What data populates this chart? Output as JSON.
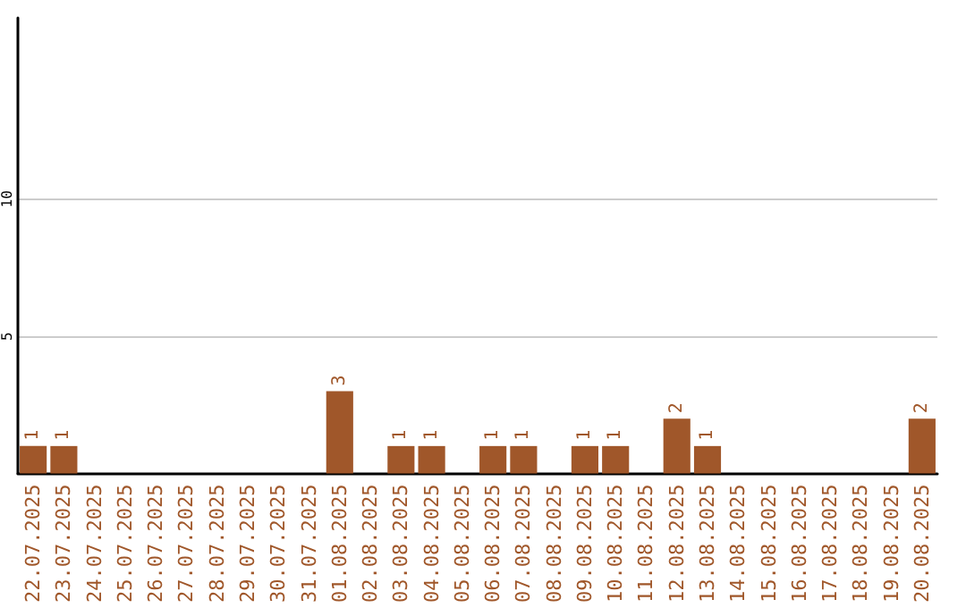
{
  "chart_data": {
    "type": "bar",
    "categories": [
      "22.07.2025",
      "23.07.2025",
      "24.07.2025",
      "25.07.2025",
      "26.07.2025",
      "27.07.2025",
      "28.07.2025",
      "29.07.2025",
      "30.07.2025",
      "31.07.2025",
      "01.08.2025",
      "02.08.2025",
      "03.08.2025",
      "04.08.2025",
      "05.08.2025",
      "06.08.2025",
      "07.08.2025",
      "08.08.2025",
      "09.08.2025",
      "10.08.2025",
      "11.08.2025",
      "12.08.2025",
      "13.08.2025",
      "14.08.2025",
      "15.08.2025",
      "16.08.2025",
      "17.08.2025",
      "18.08.2025",
      "19.08.2025",
      "20.08.2025"
    ],
    "values": [
      1,
      1,
      0,
      0,
      0,
      0,
      0,
      0,
      0,
      0,
      3,
      0,
      1,
      1,
      0,
      1,
      1,
      0,
      1,
      1,
      0,
      2,
      1,
      0,
      0,
      0,
      0,
      0,
      0,
      2
    ],
    "value_labels": [
      "1",
      "1",
      null,
      null,
      null,
      null,
      null,
      null,
      null,
      null,
      "3",
      null,
      "1",
      "1",
      null,
      "1",
      "1",
      null,
      "1",
      "1",
      null,
      "2",
      "1",
      null,
      null,
      null,
      null,
      null,
      null,
      "2"
    ],
    "color": "#a0572a",
    "ylim": [
      0,
      16.6
    ],
    "yticks": [
      5,
      10
    ],
    "grid": "y"
  }
}
